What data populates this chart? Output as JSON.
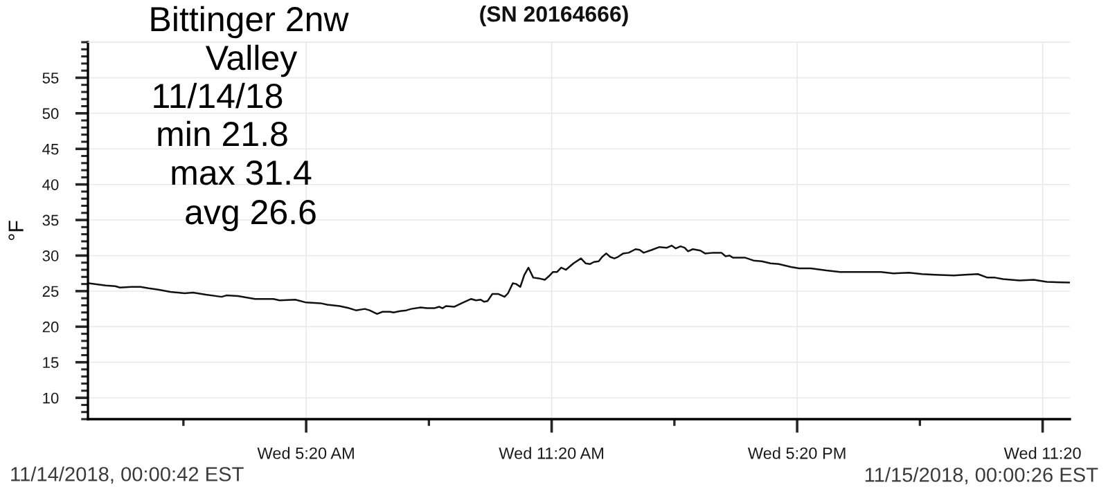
{
  "chart_data": {
    "type": "line",
    "title": "(SN 20164666)",
    "ylabel": "°F",
    "annotations": [
      "Bittinger 2nw",
      "Valley",
      "11/14/18",
      "min 21.8",
      "max 31.4",
      "avg 26.6",
      "11/14/2018, 00:00:42 EST",
      "11/15/2018, 00:00:26 EST"
    ],
    "x": [
      "2018-11-14T00:01",
      "2018-11-14T00:26",
      "2018-11-14T00:40",
      "2018-11-14T00:47",
      "2018-11-14T01:04",
      "2018-11-14T01:17",
      "2018-11-14T01:29",
      "2018-11-14T01:43",
      "2018-11-14T02:01",
      "2018-11-14T02:22",
      "2018-11-14T02:34",
      "2018-11-14T02:53",
      "2018-11-14T03:16",
      "2018-11-14T03:23",
      "2018-11-14T03:40",
      "2018-11-14T04:05",
      "2018-11-14T04:32",
      "2018-11-14T04:41",
      "2018-11-14T05:04",
      "2018-11-14T05:20",
      "2018-11-14T05:41",
      "2018-11-14T05:51",
      "2018-11-14T06:09",
      "2018-11-14T06:23",
      "2018-11-14T06:33",
      "2018-11-14T06:46",
      "2018-11-14T06:53",
      "2018-11-14T07:04",
      "2018-11-14T07:12",
      "2018-11-14T07:23",
      "2018-11-14T07:28",
      "2018-11-14T07:38",
      "2018-11-14T07:47",
      "2018-11-14T07:54",
      "2018-11-14T08:08",
      "2018-11-14T08:17",
      "2018-11-14T08:28",
      "2018-11-14T08:35",
      "2018-11-14T08:40",
      "2018-11-14T08:45",
      "2018-11-14T08:57",
      "2018-11-14T09:08",
      "2018-11-14T09:22",
      "2018-11-14T09:29",
      "2018-11-14T09:36",
      "2018-11-14T09:41",
      "2018-11-14T09:46",
      "2018-11-14T09:53",
      "2018-11-14T10:02",
      "2018-11-14T10:11",
      "2018-11-14T10:16",
      "2018-11-14T10:23",
      "2018-11-14T10:28",
      "2018-11-14T10:34",
      "2018-11-14T10:40",
      "2018-11-14T10:46",
      "2018-11-14T10:53",
      "2018-11-14T11:01",
      "2018-11-14T11:10",
      "2018-11-14T11:16",
      "2018-11-14T11:22",
      "2018-11-14T11:28",
      "2018-11-14T11:34",
      "2018-11-14T11:41",
      "2018-11-14T11:52",
      "2018-11-14T12:03",
      "2018-11-14T12:10",
      "2018-11-14T12:16",
      "2018-11-14T12:22",
      "2018-11-14T12:29",
      "2018-11-14T12:34",
      "2018-11-14T12:40",
      "2018-11-14T12:46",
      "2018-11-14T12:52",
      "2018-11-14T12:57",
      "2018-11-14T13:05",
      "2018-11-14T13:13",
      "2018-11-14T13:23",
      "2018-11-14T13:29",
      "2018-11-14T13:35",
      "2018-11-14T13:47",
      "2018-11-14T13:58",
      "2018-11-14T14:09",
      "2018-11-14T14:16",
      "2018-11-14T14:22",
      "2018-11-14T14:29",
      "2018-11-14T14:35",
      "2018-11-14T14:40",
      "2018-11-14T14:47",
      "2018-11-14T14:58",
      "2018-11-14T15:05",
      "2018-11-14T15:17",
      "2018-11-14T15:29",
      "2018-11-14T15:35",
      "2018-11-14T15:41",
      "2018-11-14T15:46",
      "2018-11-14T16:04",
      "2018-11-14T16:16",
      "2018-11-14T16:28",
      "2018-11-14T16:41",
      "2018-11-14T16:53",
      "2018-11-14T17:11",
      "2018-11-14T17:23",
      "2018-11-14T17:40",
      "2018-11-14T18:03",
      "2018-11-14T18:23",
      "2018-11-14T18:45",
      "2018-11-14T18:59",
      "2018-11-14T19:23",
      "2018-11-14T19:41",
      "2018-11-14T20:04",
      "2018-11-14T20:23",
      "2018-11-14T20:42",
      "2018-11-14T21:10",
      "2018-11-14T21:26",
      "2018-11-14T21:45",
      "2018-11-14T21:59",
      "2018-11-14T22:10",
      "2018-11-14T22:22",
      "2018-11-14T22:46",
      "2018-11-14T23:07",
      "2018-11-14T23:26",
      "2018-11-15T00:00"
    ],
    "series": [
      {
        "color": "#111111",
        "values": [
          26.1,
          25.8,
          25.7,
          25.5,
          25.6,
          25.6,
          25.4,
          25.2,
          24.9,
          24.7,
          24.8,
          24.5,
          24.2,
          24.4,
          24.3,
          23.9,
          23.9,
          23.7,
          23.8,
          23.4,
          23.3,
          23.1,
          22.9,
          22.6,
          22.3,
          22.5,
          22.3,
          21.8,
          22.1,
          22.1,
          22.0,
          22.2,
          22.3,
          22.5,
          22.7,
          22.6,
          22.6,
          22.8,
          22.6,
          22.9,
          22.8,
          23.3,
          23.9,
          23.7,
          23.8,
          23.5,
          23.6,
          24.6,
          24.6,
          24.2,
          24.7,
          26.1,
          26.0,
          25.6,
          27.3,
          28.3,
          26.9,
          26.8,
          26.6,
          27.1,
          27.7,
          27.7,
          28.3,
          28.0,
          28.9,
          29.6,
          28.9,
          28.8,
          29.1,
          29.2,
          29.8,
          30.3,
          29.8,
          29.6,
          29.8,
          30.3,
          30.4,
          30.9,
          30.8,
          30.4,
          30.8,
          31.2,
          31.1,
          31.4,
          31.0,
          31.3,
          31.1,
          30.6,
          30.9,
          30.7,
          30.3,
          30.4,
          30.4,
          29.9,
          30.0,
          29.7,
          29.7,
          29.3,
          29.2,
          28.9,
          28.8,
          28.4,
          28.2,
          28.2,
          27.9,
          27.7,
          27.7,
          27.7,
          27.7,
          27.5,
          27.6,
          27.4,
          27.3,
          27.2,
          27.3,
          27.4,
          26.9,
          26.9,
          26.7,
          26.5,
          26.6,
          26.3,
          26.2
        ]
      }
    ],
    "xlim": [
      "2018-11-14T00:00",
      "2018-11-15T00:00"
    ],
    "xticks": [
      {
        "value": "2018-11-14T02:20",
        "label": null
      },
      {
        "value": "2018-11-14T05:20",
        "label": "Wed 5:20 AM"
      },
      {
        "value": "2018-11-14T08:20",
        "label": null
      },
      {
        "value": "2018-11-14T11:20",
        "label": "Wed 11:20 AM"
      },
      {
        "value": "2018-11-14T14:20",
        "label": null
      },
      {
        "value": "2018-11-14T17:20",
        "label": "Wed 5:20 PM"
      },
      {
        "value": "2018-11-14T20:20",
        "label": null
      },
      {
        "value": "2018-11-14T23:20",
        "label": "Wed 11:20"
      }
    ],
    "ylim": [
      7,
      60
    ],
    "yticks": [
      {
        "value": 7,
        "label": null
      },
      {
        "value": 8,
        "label": null
      },
      {
        "value": 9,
        "label": null
      },
      10,
      {
        "value": 11,
        "label": null
      },
      {
        "value": 12,
        "label": null
      },
      {
        "value": 13,
        "label": null
      },
      {
        "value": 14,
        "label": null
      },
      15,
      {
        "value": 16,
        "label": null
      },
      {
        "value": 17,
        "label": null
      },
      {
        "value": 18,
        "label": null
      },
      {
        "value": 19,
        "label": null
      },
      20,
      {
        "value": 21,
        "label": null
      },
      {
        "value": 22,
        "label": null
      },
      {
        "value": 23,
        "label": null
      },
      {
        "value": 24,
        "label": null
      },
      25,
      {
        "value": 26,
        "label": null
      },
      {
        "value": 27,
        "label": null
      },
      {
        "value": 28,
        "label": null
      },
      {
        "value": 29,
        "label": null
      },
      30,
      {
        "value": 31,
        "label": null
      },
      {
        "value": 32,
        "label": null
      },
      {
        "value": 33,
        "label": null
      },
      {
        "value": 34,
        "label": null
      },
      35,
      {
        "value": 36,
        "label": null
      },
      {
        "value": 37,
        "label": null
      },
      {
        "value": 38,
        "label": null
      },
      {
        "value": 39,
        "label": null
      },
      40,
      {
        "value": 41,
        "label": null
      },
      {
        "value": 42,
        "label": null
      },
      {
        "value": 43,
        "label": null
      },
      {
        "value": 44,
        "label": null
      },
      45,
      {
        "value": 46,
        "label": null
      },
      {
        "value": 47,
        "label": null
      },
      {
        "value": 48,
        "label": null
      },
      {
        "value": 49,
        "label": null
      },
      50,
      {
        "value": 51,
        "label": null
      },
      {
        "value": 52,
        "label": null
      },
      {
        "value": 53,
        "label": null
      },
      {
        "value": 54,
        "label": null
      },
      55,
      {
        "value": 56,
        "label": null
      },
      {
        "value": 57,
        "label": null
      },
      {
        "value": 58,
        "label": null
      },
      {
        "value": 59,
        "label": null
      },
      {
        "value": 60,
        "label": null
      }
    ],
    "grid": true
  }
}
